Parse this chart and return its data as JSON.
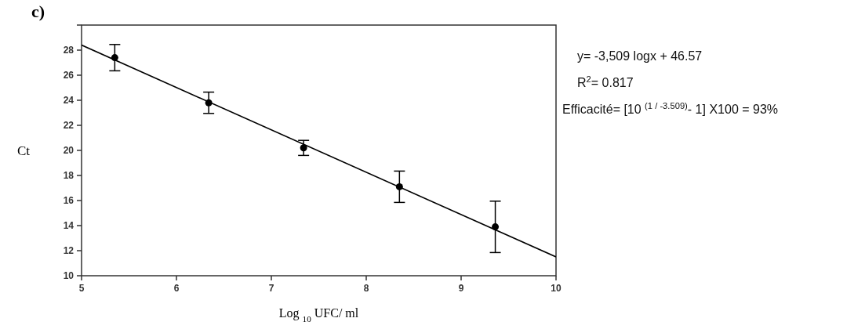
{
  "chart_data": {
    "type": "scatter",
    "title": "c)",
    "xlabel": "Log $_{10}$ UFC/ ml",
    "ylabel": "Ct",
    "xlim": [
      5,
      10
    ],
    "xticks": [
      5,
      6,
      7,
      8,
      9,
      10
    ],
    "ylim": [
      10,
      30
    ],
    "yticks": [
      10,
      12,
      14,
      16,
      18,
      20,
      22,
      24,
      26,
      28,
      {
        "value": 30,
        "label": null
      }
    ],
    "grid": false,
    "series": [
      {
        "marker": "circle",
        "color": "#000000",
        "x": [
          5.35,
          6.34,
          7.34,
          8.35,
          9.36
        ],
        "values": [
          27.4,
          23.8,
          20.2,
          17.1,
          13.9
        ],
        "errors": [
          1.05,
          0.85,
          0.6,
          1.25,
          2.05
        ]
      },
      {
        "type": "line",
        "color": "#000000",
        "x": [
          5,
          10
        ],
        "values": [
          28.4,
          11.5
        ],
        "line_style": "solid"
      }
    ],
    "annotations": [
      "y= -3,509 logx + 46.57",
      "R$^{2}$= 0.817",
      "Efficacité= [10 $^{(1 / -3.509)}$- 1] X100 = 93%"
    ]
  }
}
